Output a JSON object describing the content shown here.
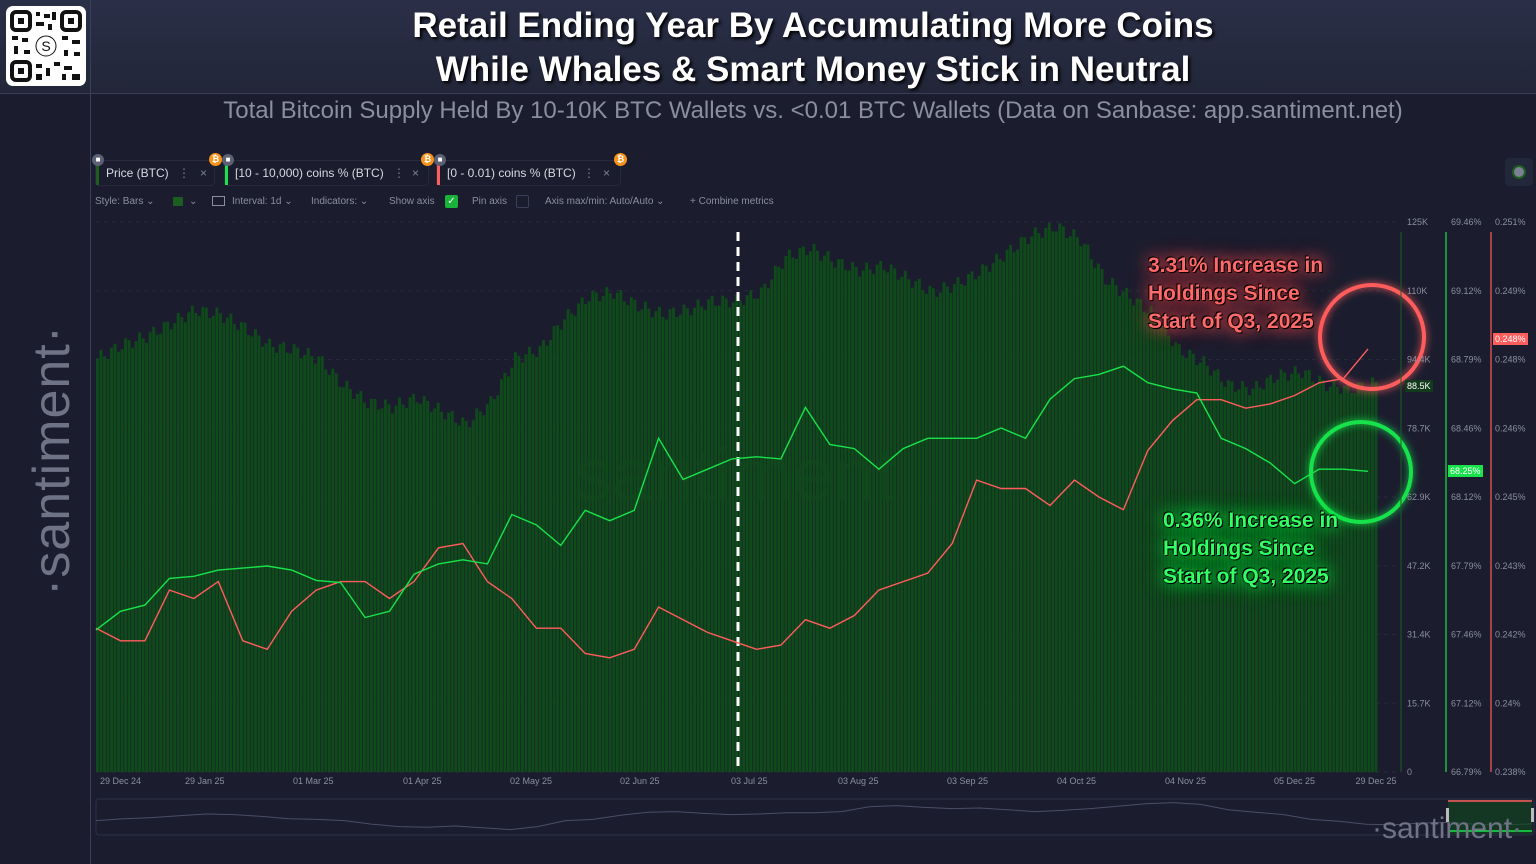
{
  "header": {
    "title_line1": "Retail Ending Year By Accumulating More Coins",
    "title_line2": "While Whales & Smart Money Stick in Neutral",
    "subtitle": "Total Bitcoin Supply Held By 10-10K BTC Wallets vs. <0.01 BTC Wallets (Data on Sanbase: app.santiment.net)"
  },
  "brand": {
    "side_logo": "·santiment·",
    "bottom_logo": "·santiment·",
    "watermark": "santiment"
  },
  "metrics": [
    {
      "label": "Price (BTC)",
      "color": "#1b5e20",
      "dots": "⋮",
      "close": "×"
    },
    {
      "label": "[10 - 10,000) coins % (BTC)",
      "color": "#19e34b",
      "dots": "⋮",
      "close": "×"
    },
    {
      "label": "[0 - 0.01) coins % (BTC)",
      "color": "#ff5c5c",
      "dots": "⋮",
      "close": "×"
    }
  ],
  "toolbar": {
    "style": "Style: Bars",
    "interval": "Interval: 1d",
    "indicators": "Indicators:",
    "show_axis": "Show axis",
    "show_axis_checked": true,
    "pin_axis": "Pin axis",
    "pin_axis_checked": false,
    "axis_maxmin": "Axis max/min: Auto/Auto",
    "combine": "Combine metrics",
    "chevron": "⌄",
    "plus": "+"
  },
  "annotations": {
    "red": [
      "3.31% Increase in",
      "Holdings Since",
      "Start of Q3, 2025"
    ],
    "green": [
      "0.36% Increase in",
      "Holdings Since",
      "Start of Q3, 2025"
    ]
  },
  "current_values": {
    "price": "88.5K",
    "whales": "68.25%",
    "retail": "0.248%"
  },
  "chart_data": {
    "type": "bar",
    "title": "Total Bitcoin Supply Held By 10-10K BTC Wallets vs. <0.01 BTC Wallets",
    "x_ticks": [
      "29 Dec 24",
      "29 Jan 25",
      "01 Mar 25",
      "01 Apr 25",
      "02 May 25",
      "02 Jun 25",
      "03 Jul 25",
      "03 Aug 25",
      "03 Sep 25",
      "04 Oct 25",
      "04 Nov 25",
      "05 Dec 25",
      "29 Dec 25"
    ],
    "x_range": [
      "2024-12-29",
      "2025-12-29"
    ],
    "marker_date": "2025-07-01",
    "axes": {
      "price": {
        "ticks": [
          "0",
          "15.7K",
          "31.4K",
          "47.2K",
          "62.9K",
          "78.7K",
          "94.4K",
          "110K",
          "125K"
        ],
        "range": [
          0,
          125000
        ]
      },
      "whales_pct": {
        "ticks": [
          "66.79%",
          "67.12%",
          "67.46%",
          "67.79%",
          "68.12%",
          "68.46%",
          "68.79%",
          "69.12%",
          "69.46%"
        ],
        "range": [
          66.79,
          69.46
        ]
      },
      "retail_pct": {
        "ticks": [
          "0.238%",
          "0.24%",
          "0.242%",
          "0.243%",
          "0.245%",
          "0.246%",
          "0.248%",
          "0.249%",
          "0.251%"
        ],
        "range": [
          0.238,
          0.251
        ]
      }
    },
    "series": [
      {
        "name": "Price (BTC)",
        "type": "bar",
        "axis": "price",
        "color": "#0f4a1a",
        "values": [
          94000,
          97000,
          99000,
          102000,
          105000,
          104000,
          101000,
          97000,
          96000,
          94000,
          88000,
          84000,
          83000,
          85000,
          82000,
          79000,
          84000,
          94000,
          96000,
          103000,
          108000,
          109000,
          106000,
          104000,
          105000,
          107000,
          107000,
          109000,
          117000,
          119000,
          116000,
          114000,
          115000,
          112000,
          109000,
          111000,
          114000,
          118000,
          122000,
          124000,
          121000,
          112000,
          108000,
          104000,
          96000,
          93000,
          88000,
          87000,
          90000,
          91000,
          88000,
          87000,
          88500
        ]
      },
      {
        "name": "[10 - 10,000) coins % (BTC)",
        "type": "line",
        "axis": "whales_pct",
        "color": "#19e34b",
        "values": [
          67.48,
          67.57,
          67.6,
          67.73,
          67.74,
          67.77,
          67.78,
          67.79,
          67.77,
          67.72,
          67.71,
          67.54,
          67.57,
          67.75,
          67.8,
          67.82,
          67.8,
          68.04,
          67.99,
          67.89,
          68.06,
          68.01,
          68.06,
          68.41,
          68.21,
          68.26,
          68.31,
          68.32,
          68.31,
          68.56,
          68.38,
          68.36,
          68.26,
          68.36,
          68.41,
          68.41,
          68.41,
          68.46,
          68.41,
          68.6,
          68.7,
          68.72,
          68.76,
          68.68,
          68.65,
          68.63,
          68.41,
          68.36,
          68.29,
          68.19,
          68.26,
          68.26,
          68.25
        ]
      },
      {
        "name": "[0 - 0.01) coins % (BTC)",
        "type": "line",
        "axis": "retail_pct",
        "color": "#ff5c5c",
        "values": [
          0.2414,
          0.2411,
          0.2411,
          0.2423,
          0.2421,
          0.2425,
          0.2411,
          0.2409,
          0.2418,
          0.2423,
          0.2425,
          0.2425,
          0.2421,
          0.2425,
          0.2433,
          0.2434,
          0.2425,
          0.2421,
          0.2414,
          0.2414,
          0.2408,
          0.2407,
          0.2409,
          0.2419,
          0.2416,
          0.2413,
          0.2411,
          0.2409,
          0.241,
          0.2416,
          0.2414,
          0.2417,
          0.2423,
          0.2425,
          0.2427,
          0.2434,
          0.2449,
          0.2447,
          0.2447,
          0.2443,
          0.2449,
          0.2445,
          0.2442,
          0.2456,
          0.2463,
          0.2468,
          0.2468,
          0.2466,
          0.2467,
          0.2469,
          0.2472,
          0.2473,
          0.248
        ]
      }
    ]
  }
}
